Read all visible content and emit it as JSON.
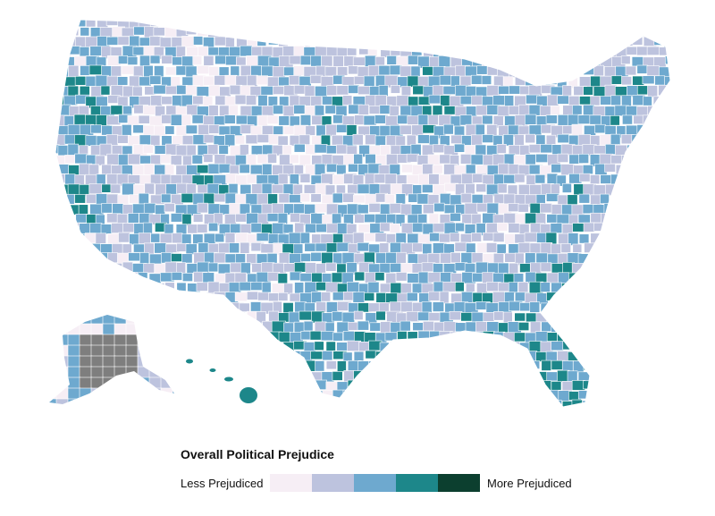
{
  "legend": {
    "title": "Overall Political Prejudice",
    "low_label": "Less Prejudiced",
    "high_label": "More Prejudiced",
    "bins": [
      {
        "level": 1,
        "color": "#f6eef5"
      },
      {
        "level": 2,
        "color": "#bdc3de"
      },
      {
        "level": 3,
        "color": "#6ea9cf"
      },
      {
        "level": 4,
        "color": "#1d878a"
      },
      {
        "level": 5,
        "color": "#0c3f2f"
      }
    ]
  },
  "colors": {
    "no_data": "#7e7e7e",
    "border": "#ffffff"
  },
  "map": {
    "type": "choropleth",
    "geography": "US counties",
    "variable": "Overall Political Prejudice",
    "scale_levels": 5,
    "no_data_region": "much of Alaska (gray)"
  }
}
